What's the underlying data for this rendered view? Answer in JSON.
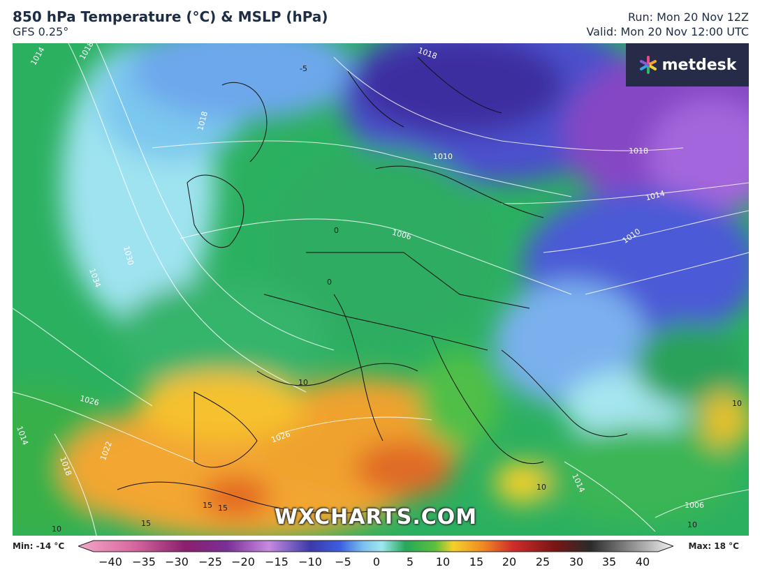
{
  "header": {
    "title": "850 hPa Temperature (°C) & MSLP (hPa)",
    "model": "GFS 0.25°",
    "run": "Run: Mon 20 Nov 12Z",
    "valid": "Valid: Mon 20 Nov 12:00 UTC"
  },
  "logo": {
    "text": "metdesk",
    "icon": "metdesk-star-icon"
  },
  "watermark": "WXCHARTS.COM",
  "isobar_labels": [
    "1014",
    "1018",
    "1018",
    "1018",
    "1010",
    "1006",
    "1018",
    "1014",
    "1010",
    "1030",
    "1034",
    "1026",
    "1022",
    "1018",
    "1014",
    "1014",
    "1006",
    "1026"
  ],
  "temp_labels": [
    "-5",
    "0",
    "0",
    "10",
    "10",
    "10",
    "10",
    "15",
    "15",
    "15",
    "10"
  ],
  "colorbar": {
    "min_label": "Min: -14 °C",
    "max_label": "Max: 18 °C",
    "ticks": [
      "−40",
      "−35",
      "−30",
      "−25",
      "−20",
      "−15",
      "−10",
      "−5",
      "0",
      "5",
      "10",
      "15",
      "20",
      "25",
      "30",
      "35",
      "40"
    ],
    "colors": {
      "cold_extreme": "#f3a8c8",
      "purple": "#7a2f96",
      "blue": "#3c5fe0",
      "cyan": "#9fe7ef",
      "green": "#25a85a",
      "yellow": "#f4d12c",
      "orange": "#ef8a22",
      "red": "#cf2d2a",
      "dark": "#3a1010",
      "grey": "#d8d8d8"
    }
  }
}
